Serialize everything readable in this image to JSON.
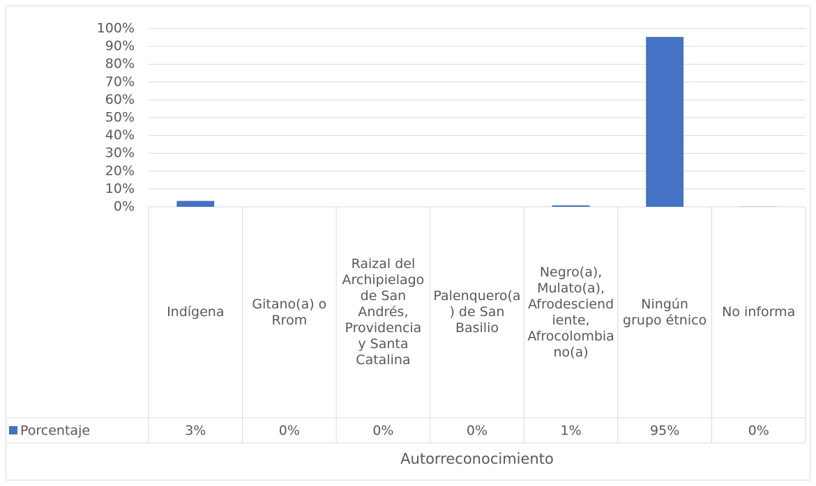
{
  "chart_data": {
    "type": "bar",
    "x_label": "Autorreconocimiento",
    "categories": [
      "Indígena",
      "Gitano(a) o Rrom",
      "Raizal del Archipielago de San Andrés, Providencia y Santa Catalina",
      "Palenquero(a) de San Basilio",
      "Negro(a), Mulato(a), Afrodesciendiente, Afrocolombiano(a)",
      "Ningún grupo étnico",
      "No informa"
    ],
    "series": [
      {
        "name": "Porcentaje",
        "color": "#4472c4",
        "values": [
          3.3,
          0,
          0,
          0,
          0.8,
          95.3,
          0.1
        ],
        "value_labels": [
          "3%",
          "0%",
          "0%",
          "0%",
          "1%",
          "95%",
          "0%"
        ]
      }
    ],
    "ylim": [
      0,
      100
    ],
    "yticks": [
      {
        "value": 0,
        "label": "0%"
      },
      {
        "value": 10,
        "label": "10%"
      },
      {
        "value": 20,
        "label": "20%"
      },
      {
        "value": 30,
        "label": "30%"
      },
      {
        "value": 40,
        "label": "40%"
      },
      {
        "value": 50,
        "label": "50%"
      },
      {
        "value": 60,
        "label": "60%"
      },
      {
        "value": 70,
        "label": "70%"
      },
      {
        "value": 80,
        "label": "80%"
      },
      {
        "value": 90,
        "label": "90%"
      },
      {
        "value": 100,
        "label": "100%"
      }
    ],
    "grid": true
  }
}
